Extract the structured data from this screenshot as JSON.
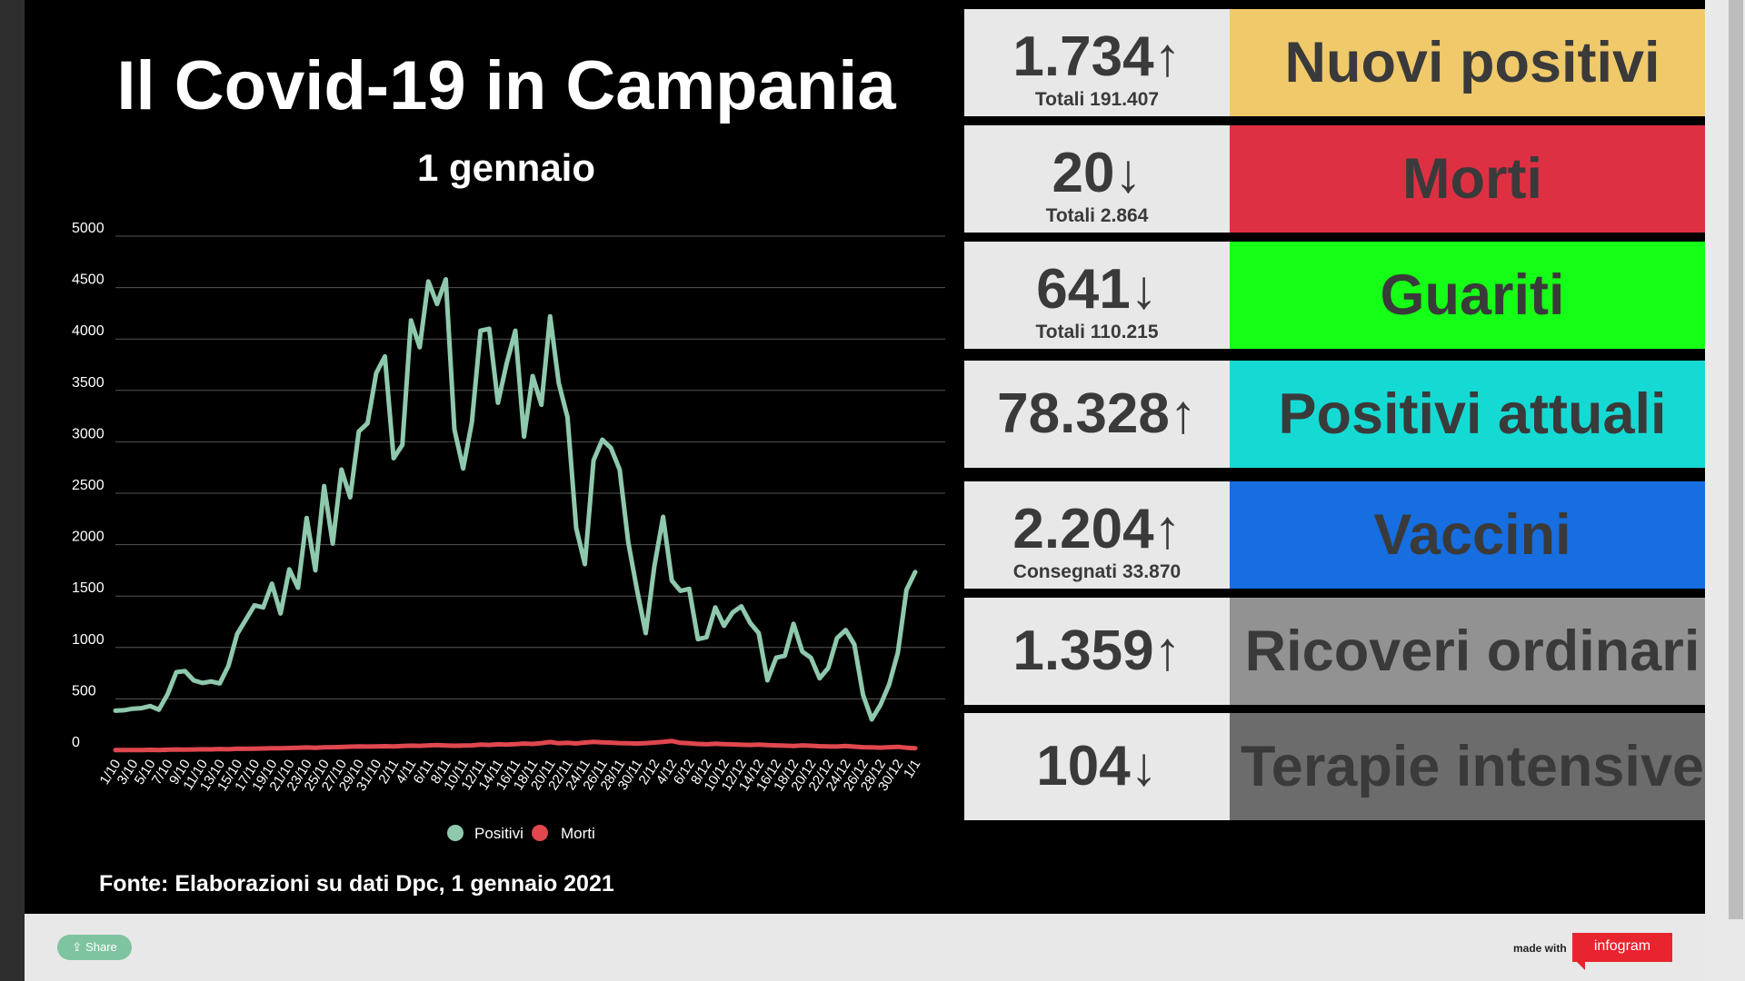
{
  "header": {
    "title": "Il Covid-19 in Campania",
    "subtitle": "1 gennaio"
  },
  "source": "Fonte: Elaborazioni su dati Dpc, 1 gennaio 2021",
  "cards": [
    {
      "value": "1.734",
      "arrow": "↑",
      "sub": "Totali 191.407",
      "label": "Nuovi positivi",
      "color": "#f0c96b"
    },
    {
      "value": "20",
      "arrow": "↓",
      "sub": "Totali 2.864",
      "label": "Morti",
      "color": "#de3043"
    },
    {
      "value": "641",
      "arrow": "↓",
      "sub": "Totali 110.215",
      "label": "Guariti",
      "color": "#16ff16"
    },
    {
      "value": "78.328",
      "arrow": "↑",
      "sub": "",
      "label": "Positivi attuali",
      "color": "#15dad4"
    },
    {
      "value": "2.204",
      "arrow": "↑",
      "sub": "Consegnati 33.870",
      "label": "Vaccini",
      "color": "#166ee0"
    },
    {
      "value": "1.359",
      "arrow": "↑",
      "sub": "",
      "label": "Ricoveri ordinari",
      "color": "#929292"
    },
    {
      "value": "104",
      "arrow": "↓",
      "sub": "",
      "label": "Terapie intensive",
      "color": "#6c6c6c"
    }
  ],
  "footer": {
    "share": "Share",
    "made_with": "made with",
    "brand": "infogram"
  },
  "chart_data": {
    "type": "line",
    "title": "",
    "xlabel": "",
    "ylabel": "",
    "ylim": [
      0,
      5000
    ],
    "yticks": [
      0,
      500,
      1000,
      1500,
      2000,
      2500,
      3000,
      3500,
      4000,
      4500,
      5000
    ],
    "grid": true,
    "legend": "bottom",
    "x": [
      "1/10",
      "2/10",
      "3/10",
      "4/10",
      "5/10",
      "6/10",
      "7/10",
      "8/10",
      "9/10",
      "10/10",
      "11/10",
      "12/10",
      "13/10",
      "14/10",
      "15/10",
      "16/10",
      "17/10",
      "18/10",
      "19/10",
      "20/10",
      "21/10",
      "22/10",
      "23/10",
      "24/10",
      "25/10",
      "26/10",
      "27/10",
      "28/10",
      "29/10",
      "30/10",
      "31/10",
      "1/11",
      "2/11",
      "3/11",
      "4/11",
      "5/11",
      "6/11",
      "7/11",
      "8/11",
      "9/11",
      "10/11",
      "11/11",
      "12/11",
      "13/11",
      "14/11",
      "15/11",
      "16/11",
      "17/11",
      "18/11",
      "19/11",
      "20/11",
      "21/11",
      "22/11",
      "23/11",
      "24/11",
      "25/11",
      "26/11",
      "27/11",
      "28/11",
      "29/11",
      "30/11",
      "1/12",
      "2/12",
      "3/12",
      "4/12",
      "5/12",
      "6/12",
      "7/12",
      "8/12",
      "9/12",
      "10/12",
      "11/12",
      "12/12",
      "13/12",
      "14/12",
      "15/12",
      "16/12",
      "17/12",
      "18/12",
      "19/12",
      "20/12",
      "21/12",
      "22/12",
      "23/12",
      "24/12",
      "25/12",
      "26/12",
      "27/12",
      "28/12",
      "29/12",
      "30/12",
      "31/12",
      "1/1"
    ],
    "x_tick_labels": [
      "1/10",
      "3/10",
      "5/10",
      "7/10",
      "9/10",
      "11/10",
      "13/10",
      "15/10",
      "17/10",
      "19/10",
      "21/10",
      "23/10",
      "25/10",
      "27/10",
      "29/10",
      "31/10",
      "2/11",
      "4/11",
      "6/11",
      "8/11",
      "10/11",
      "12/11",
      "14/11",
      "16/11",
      "18/11",
      "20/11",
      "22/11",
      "24/11",
      "26/11",
      "28/11",
      "30/11",
      "2/12",
      "4/12",
      "6/12",
      "8/12",
      "10/12",
      "12/12",
      "14/12",
      "16/12",
      "18/12",
      "20/12",
      "22/12",
      "24/12",
      "26/12",
      "28/12",
      "30/12",
      "1/1"
    ],
    "series": [
      {
        "name": "Positivi",
        "color": "#8fc9ad",
        "values": [
          385,
          390,
          405,
          410,
          430,
          395,
          545,
          760,
          770,
          680,
          655,
          670,
          650,
          820,
          1130,
          1270,
          1410,
          1390,
          1620,
          1330,
          1760,
          1580,
          2260,
          1750,
          2570,
          2010,
          2730,
          2460,
          3100,
          3180,
          3670,
          3830,
          2840,
          2970,
          4180,
          3920,
          4560,
          4340,
          4580,
          3120,
          2740,
          3190,
          4080,
          4100,
          3380,
          3760,
          4080,
          3050,
          3640,
          3360,
          4220,
          3570,
          3240,
          2160,
          1810,
          2820,
          3020,
          2940,
          2730,
          2020,
          1560,
          1140,
          1790,
          2270,
          1650,
          1550,
          1570,
          1080,
          1100,
          1390,
          1210,
          1340,
          1400,
          1240,
          1140,
          680,
          900,
          920,
          1230,
          960,
          900,
          700,
          800,
          1090,
          1170,
          1030,
          540,
          300,
          440,
          640,
          950,
          1560,
          1734
        ]
      },
      {
        "name": "Morti",
        "color": "#e0474f",
        "values": [
          2,
          2,
          3,
          3,
          4,
          3,
          5,
          8,
          6,
          8,
          10,
          9,
          12,
          10,
          15,
          14,
          16,
          18,
          20,
          19,
          22,
          25,
          27,
          24,
          28,
          30,
          32,
          35,
          38,
          36,
          38,
          40,
          37,
          42,
          45,
          43,
          48,
          50,
          47,
          44,
          46,
          48,
          55,
          52,
          58,
          55,
          60,
          65,
          62,
          70,
          80,
          68,
          72,
          66,
          75,
          82,
          78,
          74,
          70,
          68,
          65,
          70,
          75,
          82,
          90,
          72,
          68,
          62,
          58,
          64,
          60,
          57,
          54,
          52,
          55,
          50,
          48,
          45,
          42,
          48,
          44,
          40,
          38,
          36,
          42,
          35,
          30,
          28,
          26,
          30,
          34,
          25,
          20
        ]
      }
    ]
  }
}
